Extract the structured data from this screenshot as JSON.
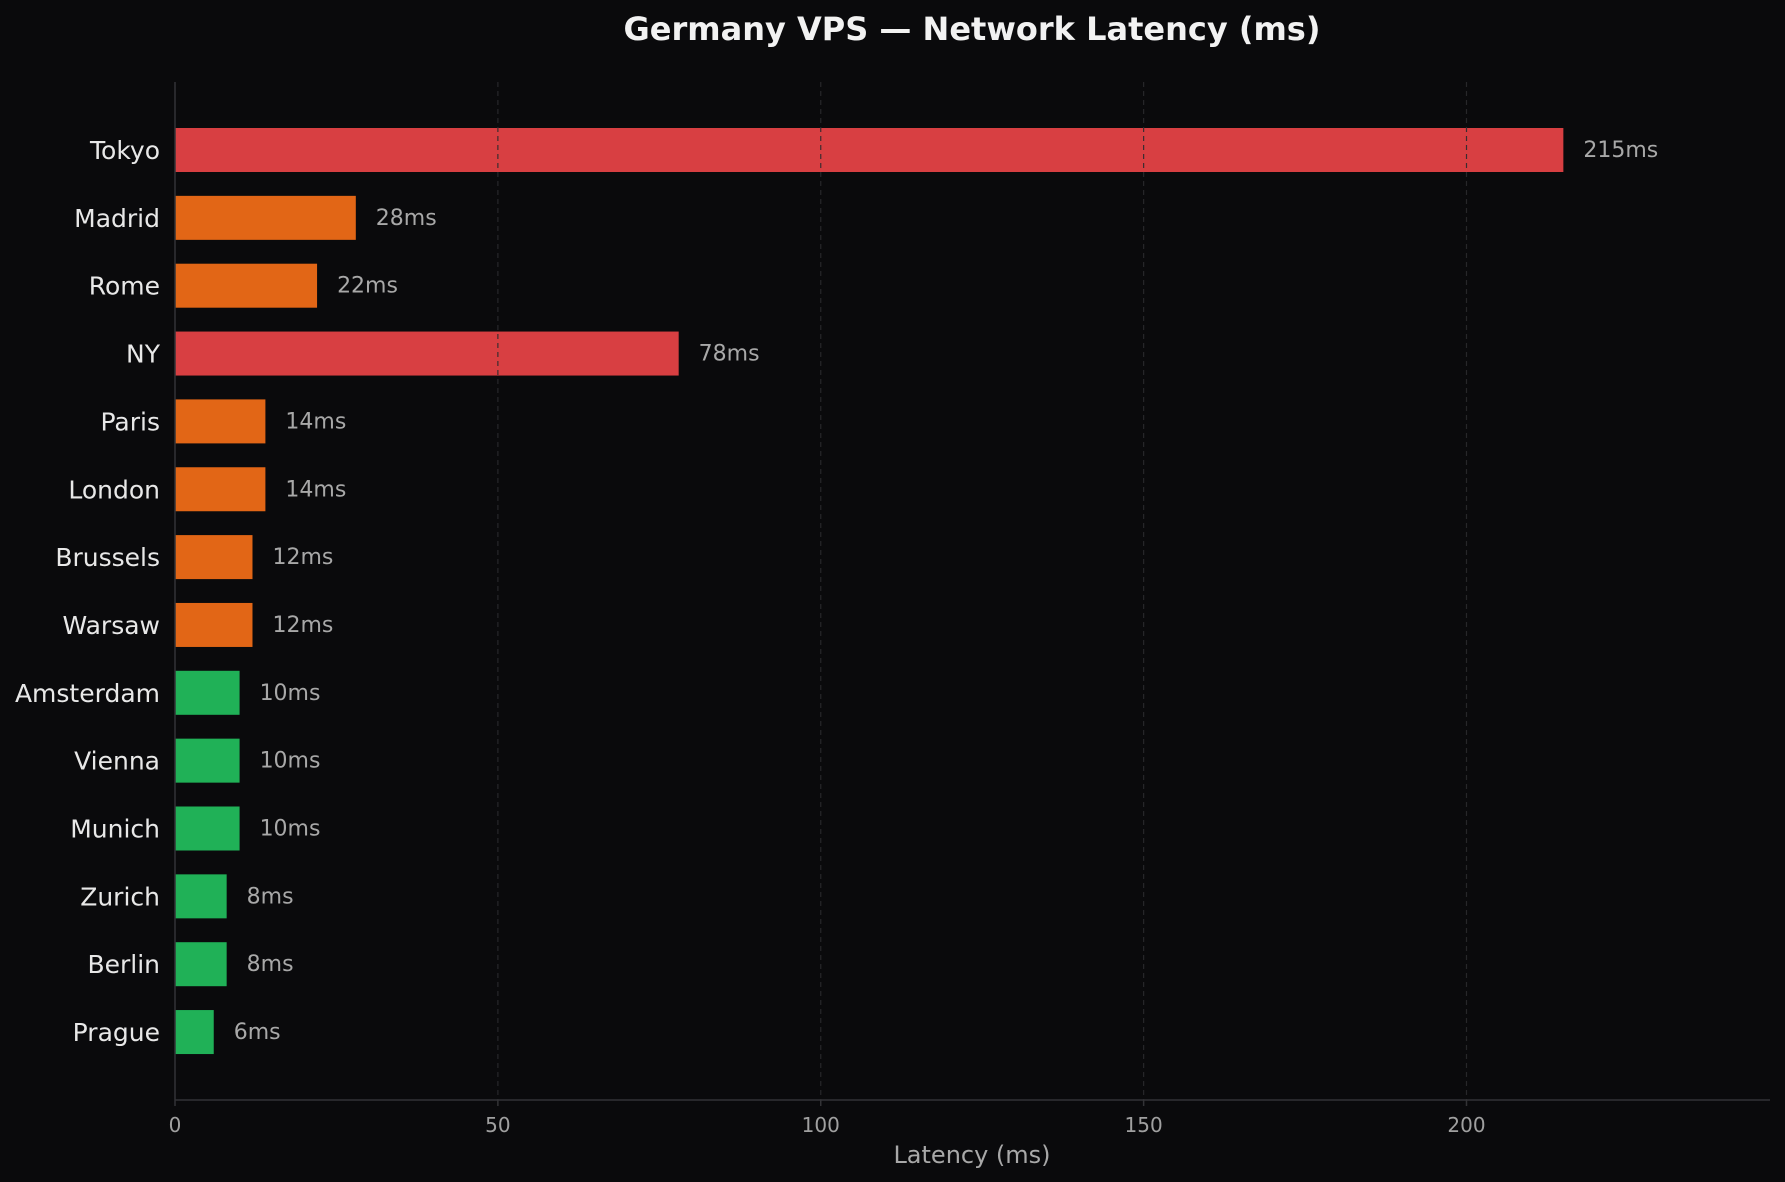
{
  "chart_data": {
    "type": "bar",
    "orientation": "horizontal",
    "title": "Germany VPS — Network Latency (ms)",
    "xlabel": "Latency (ms)",
    "ylabel": "",
    "xlim": [
      0,
      247
    ],
    "xticks": [
      0,
      50,
      100,
      150,
      200
    ],
    "grid": "x, dashed",
    "value_suffix": "ms",
    "categories": [
      "Tokyo",
      "Madrid",
      "Rome",
      "NY",
      "Paris",
      "London",
      "Brussels",
      "Warsaw",
      "Amsterdam",
      "Vienna",
      "Munich",
      "Zurich",
      "Berlin",
      "Prague"
    ],
    "values": [
      215,
      28,
      22,
      78,
      14,
      14,
      12,
      12,
      10,
      10,
      10,
      8,
      8,
      6
    ],
    "value_labels": [
      "215ms",
      "28ms",
      "22ms",
      "78ms",
      "14ms",
      "14ms",
      "12ms",
      "12ms",
      "10ms",
      "10ms",
      "10ms",
      "8ms",
      "8ms",
      "6ms"
    ],
    "bar_colors": [
      "#d83f42",
      "#e26616",
      "#e26616",
      "#d83f42",
      "#e26616",
      "#e26616",
      "#e26616",
      "#e26616",
      "#20b157",
      "#20b157",
      "#20b157",
      "#20b157",
      "#20b157",
      "#20b157"
    ]
  },
  "colors": {
    "background": "#0a0a0c",
    "title": "#f2f2f2",
    "category_label": "#e8e8e8",
    "value_label": "#a8a8a8",
    "tick_label": "#a0a0a0",
    "axis_title": "#a8a8a8",
    "axis_line": "#333336",
    "grid": "#2a2a2e",
    "red": "#d83f42",
    "orange": "#e26616",
    "green": "#20b157"
  }
}
